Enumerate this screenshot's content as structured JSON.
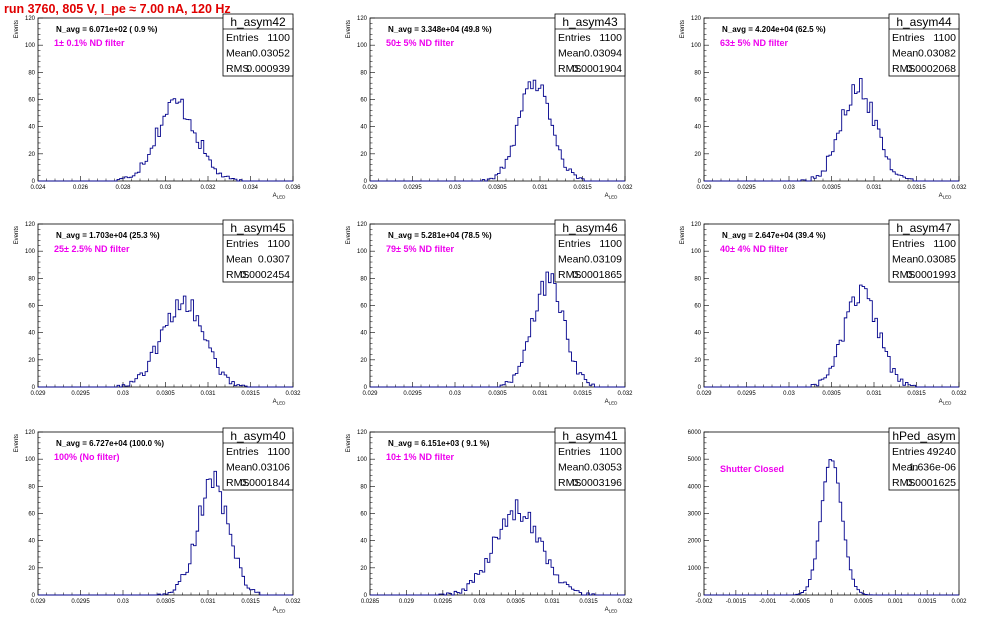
{
  "title": "run 3760,   805 V, I_pe ≈ 7.00 nA, 120 Hz",
  "colors": {
    "title": "#e00000",
    "histogram": "#00008b",
    "filter_label": "#ee00ee"
  },
  "chart_data": [
    {
      "type": "histogram",
      "name": "h_asym42",
      "stats": {
        "entries": "1100",
        "mean": "0.03052",
        "rms": "0.000939"
      },
      "navg": "N_avg = 6.071e+02 ( 0.9 %)",
      "label": "1± 0.1% ND filter",
      "xlim": [
        0.024,
        0.036
      ],
      "ylim": [
        0,
        120
      ],
      "xticks": [
        "0.024",
        "0.026",
        "0.028",
        "0.03",
        "0.032",
        "0.034",
        "0.036"
      ],
      "yticks": [
        "0",
        "20",
        "40",
        "60",
        "80",
        "100",
        "120"
      ],
      "xlabel": "A_LED",
      "ylabel": "Events",
      "mean": 0.03052,
      "rms": 0.000939,
      "peak": 57,
      "nbins": 100
    },
    {
      "type": "histogram",
      "name": "h_asym43",
      "stats": {
        "entries": "1100",
        "mean": "0.03094",
        "rms": "0.0001904"
      },
      "navg": "N_avg = 3.348e+04 (49.8 %)",
      "label": "50± 5% ND filter",
      "xlim": [
        0.029,
        0.032
      ],
      "ylim": [
        0,
        120
      ],
      "xticks": [
        "0.029",
        "0.0295",
        "0.03",
        "0.0305",
        "0.031",
        "0.0315",
        "0.032"
      ],
      "yticks": [
        "0",
        "20",
        "40",
        "60",
        "80",
        "100",
        "120"
      ],
      "xlabel": "A_LED",
      "ylabel": "Events",
      "mean": 0.03094,
      "rms": 0.0001904,
      "peak": 74,
      "nbins": 100
    },
    {
      "type": "histogram",
      "name": "h_asym44",
      "stats": {
        "entries": "1100",
        "mean": "0.03082",
        "rms": "0.0002068"
      },
      "navg": "N_avg = 4.204e+04 (62.5 %)",
      "label": "63± 5% ND filter",
      "xlim": [
        0.029,
        0.032
      ],
      "ylim": [
        0,
        120
      ],
      "xticks": [
        "0.029",
        "0.0295",
        "0.03",
        "0.0305",
        "0.031",
        "0.0315",
        "0.032"
      ],
      "yticks": [
        "0",
        "20",
        "40",
        "60",
        "80",
        "100",
        "120"
      ],
      "xlabel": "A_LED",
      "ylabel": "Events",
      "mean": 0.03082,
      "rms": 0.0002068,
      "peak": 68,
      "nbins": 100
    },
    {
      "type": "histogram",
      "name": "h_asym45",
      "stats": {
        "entries": "1100",
        "mean": "0.0307",
        "rms": "0.0002454"
      },
      "navg": "N_avg = 1.703e+04 (25.3 %)",
      "label": "25± 2.5% ND filter",
      "xlim": [
        0.029,
        0.032
      ],
      "ylim": [
        0,
        120
      ],
      "xticks": [
        "0.029",
        "0.0295",
        "0.03",
        "0.0305",
        "0.031",
        "0.0315",
        "0.032"
      ],
      "yticks": [
        "0",
        "20",
        "40",
        "60",
        "80",
        "100",
        "120"
      ],
      "xlabel": "A_LED",
      "ylabel": "Events",
      "mean": 0.0307,
      "rms": 0.0002454,
      "peak": 63,
      "nbins": 100
    },
    {
      "type": "histogram",
      "name": "h_asym46",
      "stats": {
        "entries": "1100",
        "mean": "0.03109",
        "rms": "0.0001865"
      },
      "navg": "N_avg = 5.281e+04 (78.5 %)",
      "label": "79± 5% ND filter",
      "xlim": [
        0.029,
        0.032
      ],
      "ylim": [
        0,
        120
      ],
      "xticks": [
        "0.029",
        "0.0295",
        "0.03",
        "0.0305",
        "0.031",
        "0.0315",
        "0.032"
      ],
      "yticks": [
        "0",
        "20",
        "40",
        "60",
        "80",
        "100",
        "120"
      ],
      "xlabel": "A_LED",
      "ylabel": "Events",
      "mean": 0.03109,
      "rms": 0.0001865,
      "peak": 78,
      "nbins": 100
    },
    {
      "type": "histogram",
      "name": "h_asym47",
      "stats": {
        "entries": "1100",
        "mean": "0.03085",
        "rms": "0.0001993"
      },
      "navg": "N_avg = 2.647e+04 (39.4 %)",
      "label": "40± 4% ND filter",
      "xlim": [
        0.029,
        0.032
      ],
      "ylim": [
        0,
        120
      ],
      "xticks": [
        "0.029",
        "0.0295",
        "0.03",
        "0.0305",
        "0.031",
        "0.0315",
        "0.032"
      ],
      "yticks": [
        "0",
        "20",
        "40",
        "60",
        "80",
        "100",
        "120"
      ],
      "xlabel": "A_LED",
      "ylabel": "Events",
      "mean": 0.03085,
      "rms": 0.0001993,
      "peak": 69,
      "nbins": 100
    },
    {
      "type": "histogram",
      "name": "h_asym40",
      "stats": {
        "entries": "1100",
        "mean": "0.03106",
        "rms": "0.0001844"
      },
      "navg": "N_avg = 6.727e+04 (100.0 %)",
      "label": "100% (No filter)",
      "xlim": [
        0.029,
        0.032
      ],
      "ylim": [
        0,
        120
      ],
      "xticks": [
        "0.029",
        "0.0295",
        "0.03",
        "0.0305",
        "0.031",
        "0.0315",
        "0.032"
      ],
      "yticks": [
        "0",
        "20",
        "40",
        "60",
        "80",
        "100",
        "120"
      ],
      "xlabel": "A_LED",
      "ylabel": "Events",
      "mean": 0.03106,
      "rms": 0.0001844,
      "peak": 82,
      "nbins": 100
    },
    {
      "type": "histogram",
      "name": "h_asym41",
      "stats": {
        "entries": "1100",
        "mean": "0.03053",
        "rms": "0.0003196"
      },
      "navg": "N_avg = 6.151e+03 ( 9.1 %)",
      "label": "10± 1% ND filter",
      "xlim": [
        0.0285,
        0.032
      ],
      "ylim": [
        0,
        120
      ],
      "xticks": [
        "0.0285",
        "0.029",
        "0.0295",
        "0.03",
        "0.0305",
        "0.031",
        "0.0315",
        "0.032"
      ],
      "yticks": [
        "0",
        "20",
        "40",
        "60",
        "80",
        "100",
        "120"
      ],
      "xlabel": "A_LED",
      "ylabel": "Events",
      "mean": 0.03053,
      "rms": 0.0003196,
      "peak": 62,
      "nbins": 100
    },
    {
      "type": "histogram",
      "name": "hPed_asym",
      "stats": {
        "entries": "49240",
        "mean": "1.636e-06",
        "rms": "0.0001625"
      },
      "navg": "",
      "label": "Shutter Closed",
      "xlim": [
        -0.002,
        0.002
      ],
      "ylim": [
        0,
        6000
      ],
      "xticks": [
        "-0.002",
        "-0.0015",
        "-0.001",
        "-0.0005",
        "0",
        "0.0005",
        "0.001",
        "0.0015",
        "0.002"
      ],
      "yticks": [
        "0",
        "1000",
        "2000",
        "3000",
        "4000",
        "5000",
        "6000"
      ],
      "xlabel": "",
      "ylabel": "",
      "mean": 1.64e-06,
      "rms": 0.0001625,
      "peak": 5000,
      "nbins": 100
    }
  ]
}
